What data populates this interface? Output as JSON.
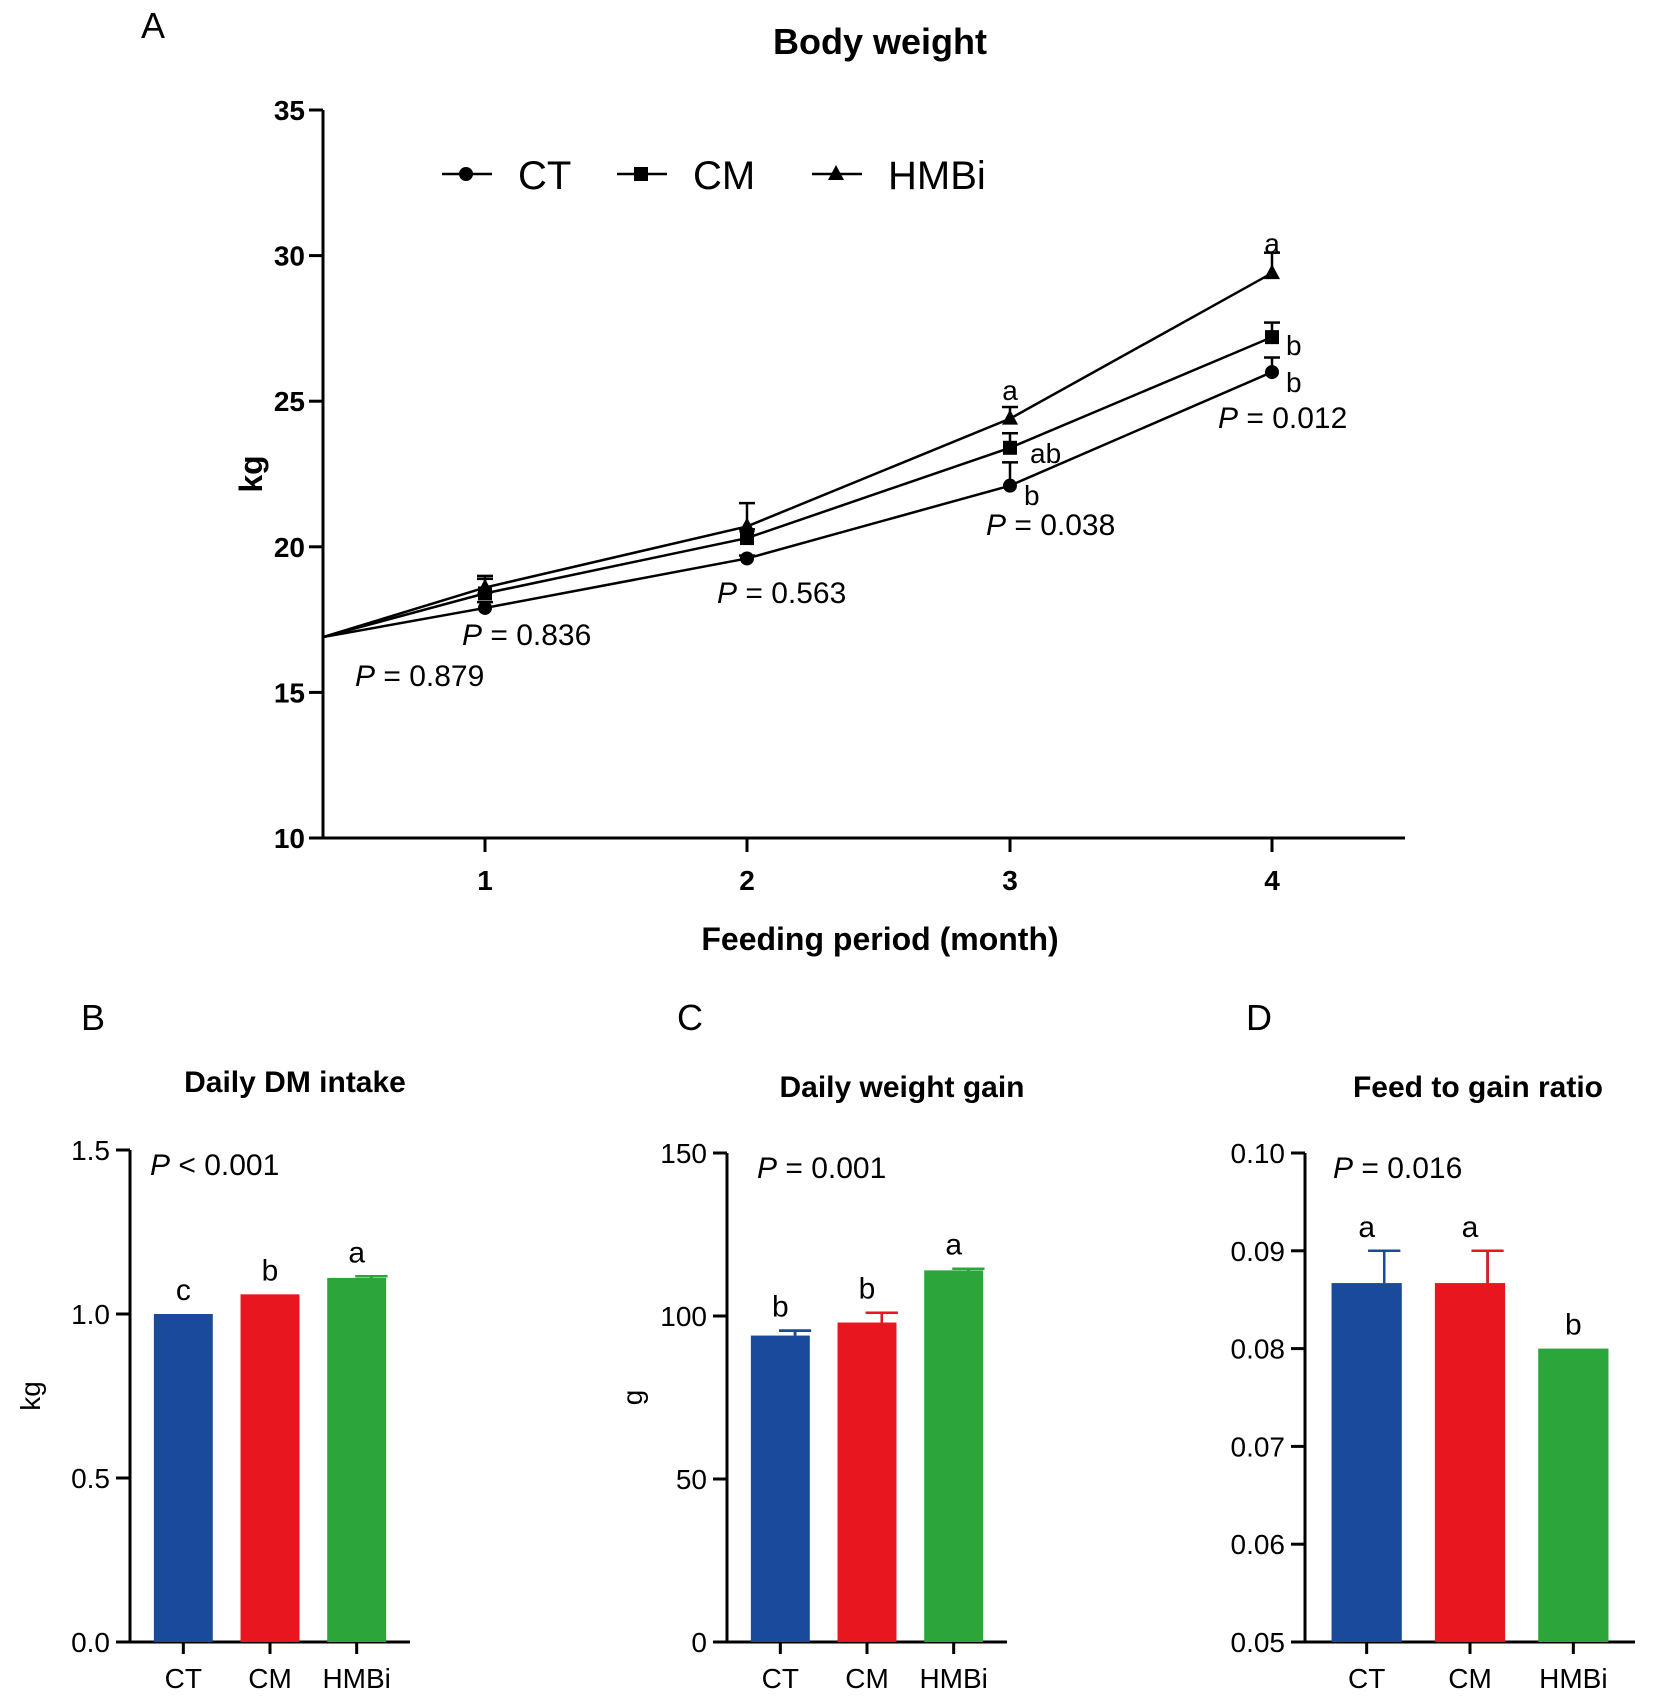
{
  "chart_data": [
    {
      "panel": "A",
      "type": "line",
      "title": "Body weight",
      "xlabel": "Feeding period (month)",
      "ylabel": "kg",
      "ylim": [
        10,
        35
      ],
      "yticks": [
        "10",
        "15",
        "20",
        "25",
        "30",
        "35"
      ],
      "xticks": [
        "1",
        "2",
        "3",
        "4"
      ],
      "x": [
        0.5,
        1,
        2,
        3,
        4
      ],
      "series": [
        {
          "name": "CT",
          "marker": "circle",
          "values": [
            16.9,
            17.9,
            19.6,
            22.1,
            26.0
          ],
          "errors": [
            0,
            0.2,
            0.1,
            0.8,
            0.5
          ]
        },
        {
          "name": "CM",
          "marker": "square",
          "values": [
            16.9,
            18.4,
            20.3,
            23.4,
            27.2
          ],
          "errors": [
            0,
            0.5,
            0.3,
            0.5,
            0.5
          ]
        },
        {
          "name": "HMBi",
          "marker": "triangle",
          "values": [
            16.9,
            18.6,
            20.7,
            24.4,
            29.4
          ],
          "errors": [
            0,
            0.4,
            0.8,
            0.4,
            0.7
          ]
        }
      ],
      "significance": {
        "month3": {
          "CT": "b",
          "CM": "ab",
          "HMBi": "a"
        },
        "month4": {
          "CT": "b",
          "CM": "b",
          "HMBi": "a"
        }
      },
      "p_values": [
        "0.879",
        "0.836",
        "0.563",
        "0.038",
        "0.012"
      ],
      "p_symbol": "P",
      "p_prefix": " = "
    },
    {
      "panel": "B",
      "type": "bar",
      "title": "Daily DM intake",
      "ylabel": "kg",
      "ylim": [
        0,
        1.5
      ],
      "yticks": [
        "0.0",
        "0.5",
        "1.0",
        "1.5"
      ],
      "categories": [
        "CT",
        "CM",
        "HMBi"
      ],
      "values": [
        1.0,
        1.06,
        1.11
      ],
      "errors": [
        0,
        0,
        0.005
      ],
      "letters": [
        "c",
        "b",
        "a"
      ],
      "colors": [
        "#1a4a9c",
        "#e8161f",
        "#2ca53a"
      ],
      "p_symbol": "P",
      "p_text": " < 0.001"
    },
    {
      "panel": "C",
      "type": "bar",
      "title": "Daily weight gain",
      "ylabel": "g",
      "ylim": [
        0,
        150
      ],
      "yticks": [
        "0",
        "50",
        "100",
        "150"
      ],
      "categories": [
        "CT",
        "CM",
        "HMBi"
      ],
      "values": [
        94,
        98,
        114
      ],
      "errors": [
        1.5,
        3,
        0.5
      ],
      "letters": [
        "b",
        "b",
        "a"
      ],
      "colors": [
        "#1a4a9c",
        "#e8161f",
        "#2ca53a"
      ],
      "p_symbol": "P",
      "p_text": " = 0.001"
    },
    {
      "panel": "D",
      "type": "bar",
      "title": "Feed to gain ratio",
      "ylabel": "",
      "ylim": [
        0.05,
        0.1
      ],
      "yticks": [
        "0.05",
        "0.06",
        "0.07",
        "0.08",
        "0.09",
        "0.10"
      ],
      "categories": [
        "CT",
        "CM",
        "HMBi"
      ],
      "values": [
        0.0867,
        0.0867,
        0.08
      ],
      "errors": [
        0.0033,
        0.0033,
        0
      ],
      "letters": [
        "a",
        "a",
        "b"
      ],
      "colors": [
        "#1a4a9c",
        "#e8161f",
        "#2ca53a"
      ],
      "p_symbol": "P",
      "p_text": " = 0.016"
    }
  ]
}
